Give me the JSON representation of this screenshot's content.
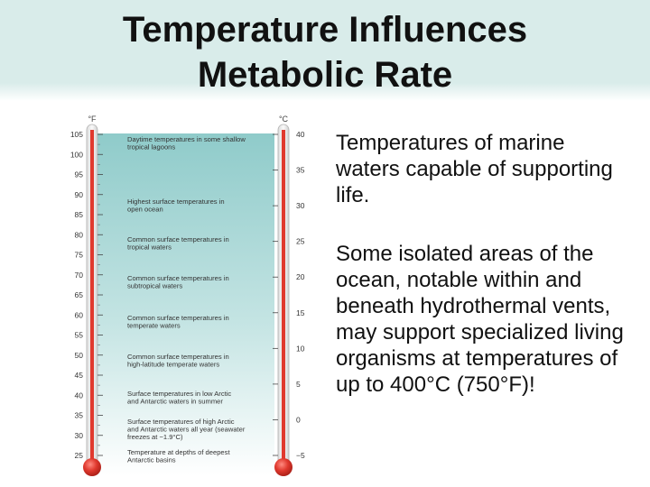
{
  "slide": {
    "title_line1": "Temperature Influences",
    "title_line2": "Metabolic Rate"
  },
  "thermometer": {
    "left_unit": "°F",
    "right_unit": "°C",
    "fahrenheit_ticks": [
      "105",
      "100",
      "95",
      "90",
      "85",
      "80",
      "75",
      "70",
      "65",
      "60",
      "55",
      "50",
      "45",
      "40",
      "35",
      "30",
      "25"
    ],
    "celsius_ticks": [
      "40",
      "35",
      "30",
      "25",
      "20",
      "15",
      "10",
      "5",
      "0",
      "−5"
    ],
    "annotations": [
      {
        "line1": "Daytime temperatures in some shallow",
        "line2": "tropical lagoons"
      },
      {
        "line1": "Highest surface temperatures in",
        "line2": "open ocean"
      },
      {
        "line1": "Common surface temperatures in",
        "line2": "tropical waters"
      },
      {
        "line1": "Common surface temperatures in",
        "line2": "subtropical waters"
      },
      {
        "line1": "Common surface temperatures in",
        "line2": "temperate waters"
      },
      {
        "line1": "Common surface temperatures in",
        "line2": "high-latitude temperate waters"
      },
      {
        "line1": "Surface temperatures in low Arctic",
        "line2": "and Antarctic waters in summer"
      },
      {
        "line1": "Surface temperatures of high Arctic",
        "line2": "and Antarctic waters all year (seawater",
        "line3": "freezes at −1.9°C)"
      },
      {
        "line1": "Temperature at depths of deepest",
        "line2": "Antarctic basins"
      }
    ],
    "colors": {
      "bg_top": "#9fd3d1",
      "bg_bottom": "#ffffff",
      "mercury": "#e0392e",
      "tube": "#f2f2f2"
    }
  },
  "bullets": [
    "Temperatures of marine waters capable of supporting life.",
    "Some isolated areas of the ocean, notable within and beneath hydrothermal vents, may support specialized living organisms at temperatures of up to 400°C (750°F)!"
  ]
}
